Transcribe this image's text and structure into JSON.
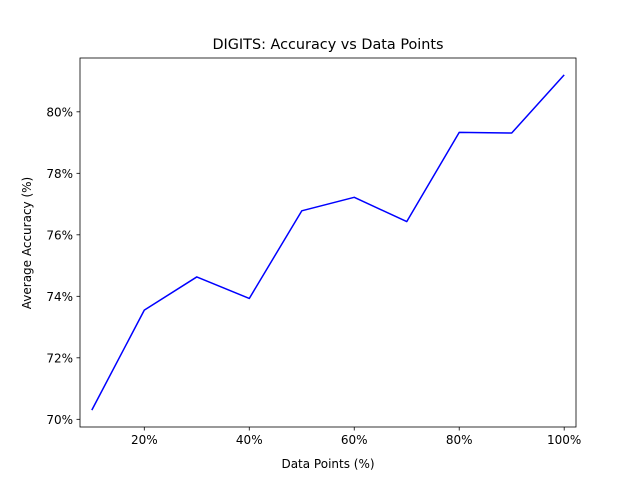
{
  "chart_data": {
    "type": "line",
    "title": "DIGITS: Accuracy vs Data Points",
    "xlabel": "Data Points (%)",
    "ylabel": "Average Accuracy (%)",
    "xlim": [
      7.75,
      102.25
    ],
    "ylim": [
      69.75,
      81.75
    ],
    "x_ticks": [
      20,
      40,
      60,
      80,
      100
    ],
    "x_tick_labels": [
      "20%",
      "40%",
      "60%",
      "80%",
      "100%"
    ],
    "y_ticks": [
      70,
      72,
      74,
      76,
      78,
      80
    ],
    "y_tick_labels": [
      "70%",
      "72%",
      "74%",
      "76%",
      "78%",
      "80%"
    ],
    "grid": false,
    "series": [
      {
        "color": "#0000ff",
        "x": [
          10,
          20,
          30,
          40,
          50,
          60,
          70,
          80,
          90,
          100
        ],
        "values": [
          70.3,
          73.55,
          74.63,
          73.93,
          76.78,
          77.22,
          76.43,
          79.33,
          79.31,
          81.2
        ]
      }
    ]
  }
}
